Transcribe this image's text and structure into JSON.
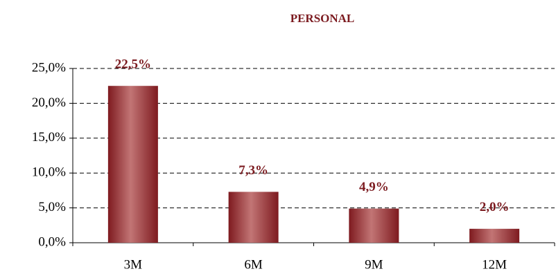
{
  "chart_data": {
    "type": "bar",
    "title": "PERSONAL",
    "categories": [
      "3M",
      "6M",
      "9M",
      "12M"
    ],
    "values": [
      22.5,
      7.3,
      4.9,
      2.0
    ],
    "value_labels": [
      "22,5%",
      "7,3%",
      "4,9%",
      "2,0%"
    ],
    "color": "#7e1a1f",
    "ylim": [
      0,
      25
    ],
    "yticks": [
      {
        "value": 0,
        "label": "0,0%"
      },
      {
        "value": 5,
        "label": "5,0%"
      },
      {
        "value": 10,
        "label": "10,0%"
      },
      {
        "value": 15,
        "label": "15,0%"
      },
      {
        "value": 20,
        "label": "20,0%"
      },
      {
        "value": 25,
        "label": "25,0%"
      }
    ],
    "grid": true
  }
}
